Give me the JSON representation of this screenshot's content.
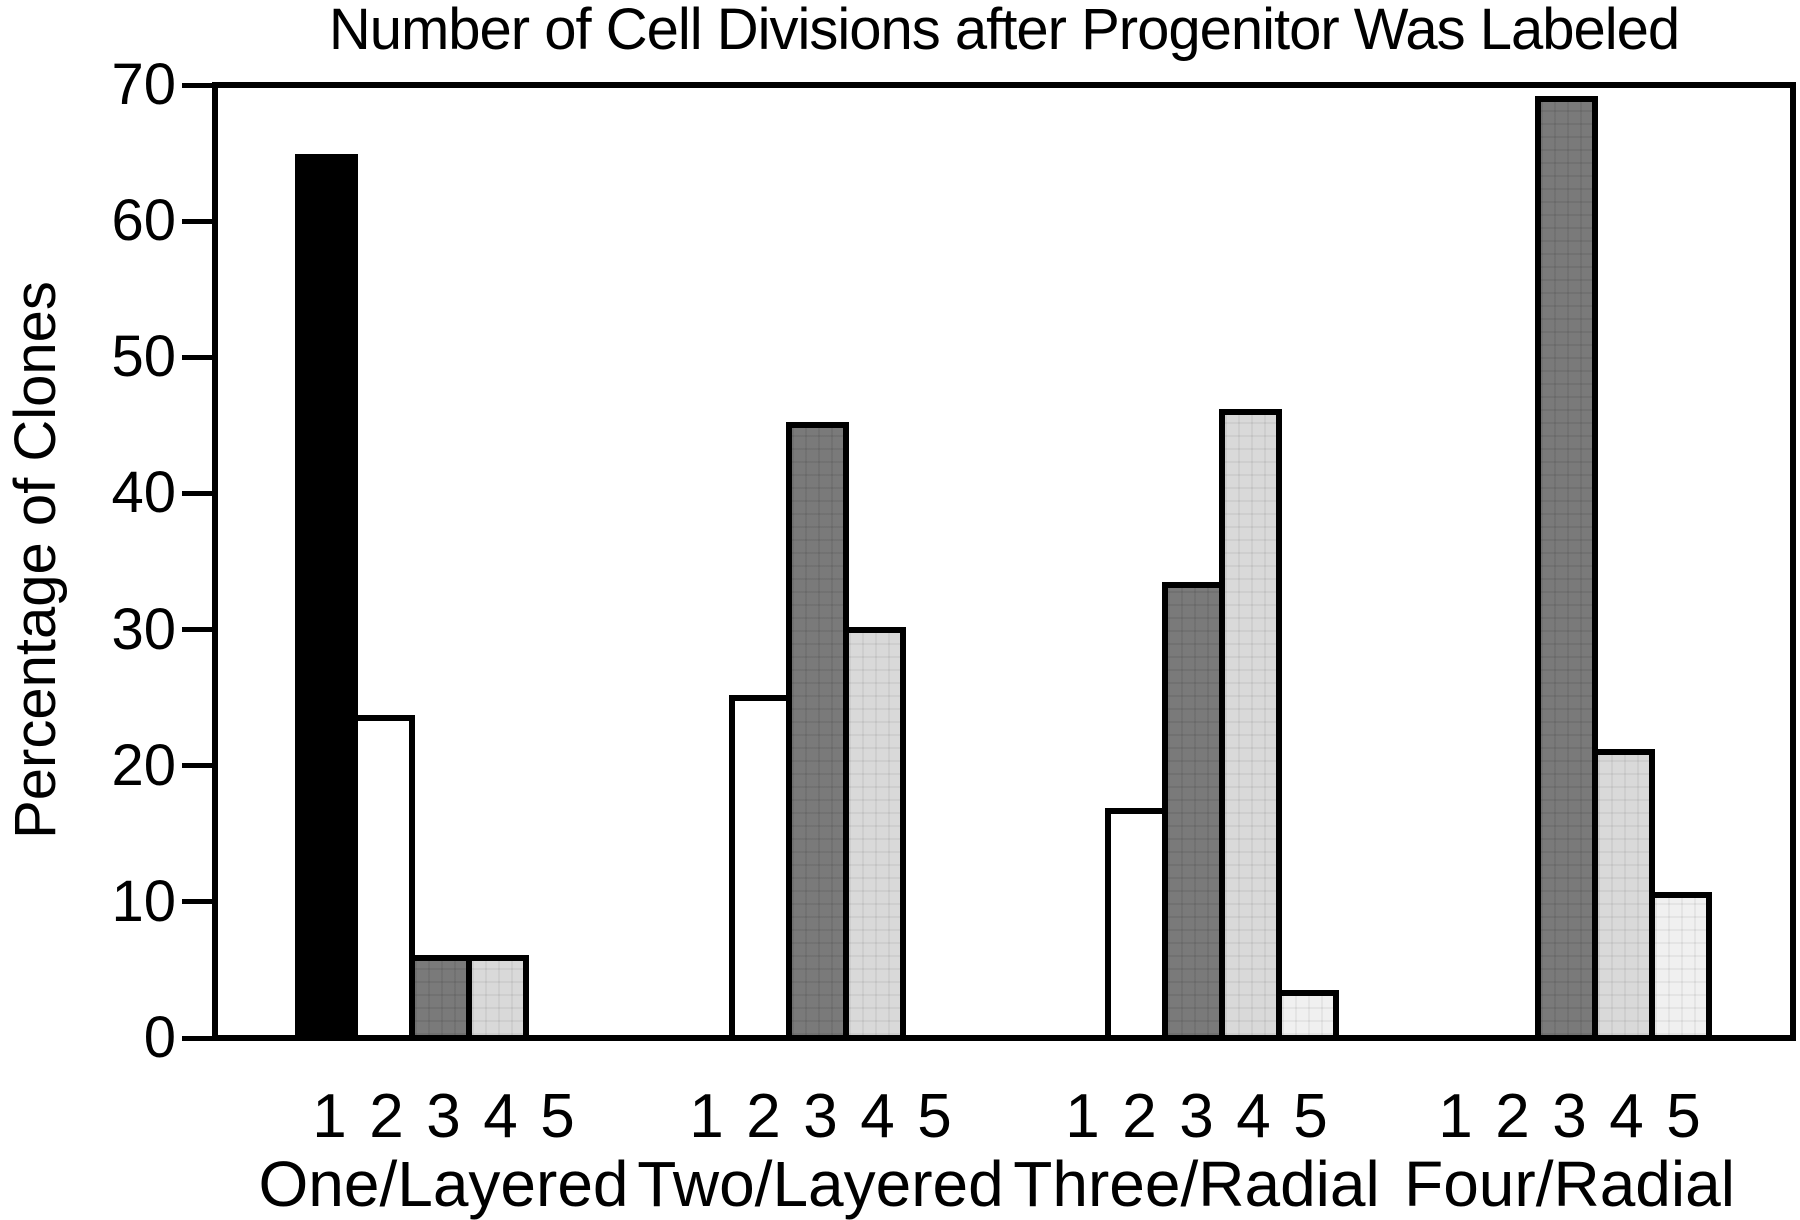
{
  "chart_data": {
    "type": "bar",
    "title": "Number of Cell Divisions after Progenitor Was Labeled",
    "xlabel": "",
    "ylabel": "Percentage of Clones",
    "ylim": [
      0,
      70
    ],
    "yticks": [
      0,
      10,
      20,
      30,
      40,
      50,
      60,
      70
    ],
    "grid": false,
    "legend_position": "none",
    "x_tick_labels": [
      "1",
      "2",
      "3",
      "4",
      "5"
    ],
    "groups": [
      {
        "label": "One/Layered",
        "values": [
          64.7,
          23.5,
          5.9,
          5.9,
          0
        ]
      },
      {
        "label": "Two/Layered",
        "values": [
          0,
          25,
          45,
          30,
          0
        ]
      },
      {
        "label": "Three/Radial",
        "values": [
          0,
          16.7,
          33.3,
          46,
          3.3
        ]
      },
      {
        "label": "Four/Radial",
        "values": [
          0,
          0,
          69,
          21,
          10.5
        ]
      }
    ],
    "bar_styles": [
      {
        "division": "1",
        "fill": "#000000"
      },
      {
        "division": "2",
        "fill": "#ffffff"
      },
      {
        "division": "3",
        "fill": "#7a7a7a"
      },
      {
        "division": "4",
        "fill": "#d9d9d9"
      },
      {
        "division": "5",
        "fill": "#f0f0f0"
      }
    ],
    "bar_border_color": "#000000",
    "axis_color": "#000000",
    "background_color": "#ffffff"
  }
}
